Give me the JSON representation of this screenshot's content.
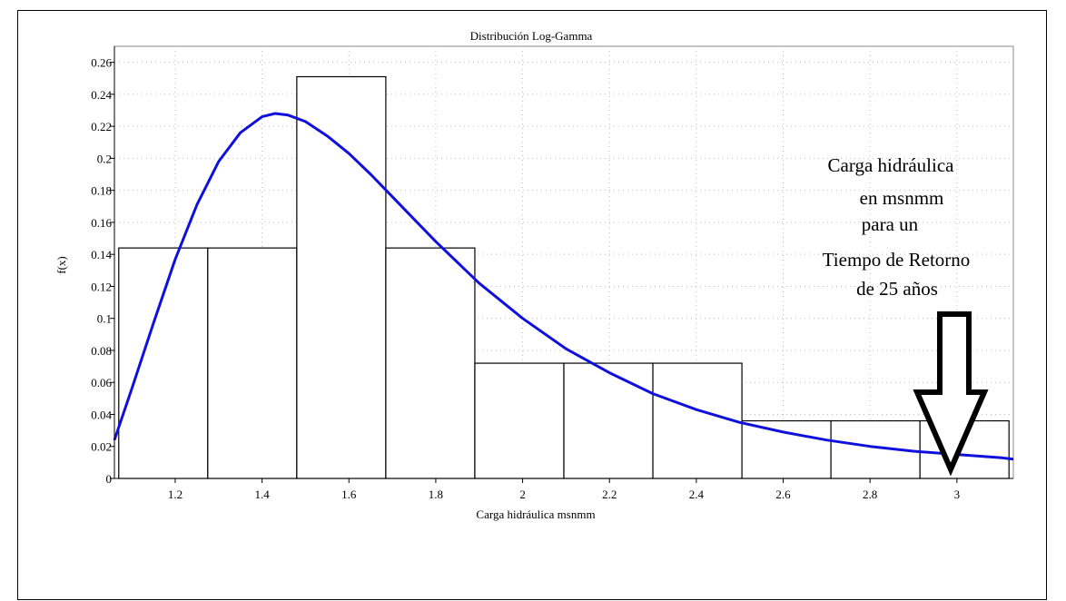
{
  "chart_data": {
    "type": "bar",
    "title": "Distribución Log-Gamma",
    "xlabel": "Carga hidráulica msnmm",
    "ylabel": "f(x)",
    "xlim": [
      1.06,
      3.13
    ],
    "ylim": [
      0,
      0.27
    ],
    "x_ticks": [
      1.2,
      1.4,
      1.6,
      1.8,
      2,
      2.2,
      2.4,
      2.6,
      2.8,
      3
    ],
    "x_tick_labels": [
      "1.2",
      "1.4",
      "1.6",
      "1.8",
      "2",
      "2.2",
      "2.4",
      "2.6",
      "2.8",
      "3"
    ],
    "y_ticks": [
      0,
      0.02,
      0.04,
      0.06,
      0.08,
      0.1,
      0.12,
      0.14,
      0.16,
      0.18,
      0.2,
      0.22,
      0.24,
      0.26
    ],
    "y_tick_labels": [
      "0",
      "0.02",
      "0.04",
      "0.06",
      "0.08",
      "0.1",
      "0.12",
      "0.14",
      "0.16",
      "0.18",
      "0.2",
      "0.22",
      "0.24",
      "0.26"
    ],
    "grid": true,
    "bins": [
      {
        "x0": 1.07,
        "x1": 1.275,
        "value": 0.144
      },
      {
        "x0": 1.275,
        "x1": 1.48,
        "value": 0.144
      },
      {
        "x0": 1.48,
        "x1": 1.685,
        "value": 0.251
      },
      {
        "x0": 1.685,
        "x1": 1.89,
        "value": 0.144
      },
      {
        "x0": 1.89,
        "x1": 2.095,
        "value": 0.072
      },
      {
        "x0": 2.095,
        "x1": 2.3,
        "value": 0.072
      },
      {
        "x0": 2.3,
        "x1": 2.505,
        "value": 0.072
      },
      {
        "x0": 2.505,
        "x1": 2.71,
        "value": 0.036
      },
      {
        "x0": 2.71,
        "x1": 2.915,
        "value": 0.036
      },
      {
        "x0": 2.915,
        "x1": 3.12,
        "value": 0.036
      }
    ],
    "curve": {
      "color": "#1010dd",
      "x": [
        1.06,
        1.1,
        1.15,
        1.2,
        1.25,
        1.3,
        1.35,
        1.4,
        1.43,
        1.46,
        1.5,
        1.55,
        1.6,
        1.65,
        1.7,
        1.75,
        1.8,
        1.85,
        1.9,
        2.0,
        2.1,
        2.2,
        2.3,
        2.4,
        2.5,
        2.6,
        2.7,
        2.8,
        2.9,
        3.0,
        3.1,
        3.13
      ],
      "y": [
        0.024,
        0.056,
        0.097,
        0.137,
        0.171,
        0.198,
        0.216,
        0.226,
        0.228,
        0.227,
        0.223,
        0.214,
        0.203,
        0.19,
        0.176,
        0.162,
        0.148,
        0.135,
        0.122,
        0.1,
        0.081,
        0.066,
        0.053,
        0.043,
        0.035,
        0.029,
        0.024,
        0.02,
        0.017,
        0.015,
        0.013,
        0.012
      ]
    },
    "annotation": {
      "lines": [
        "Carga hidráulica",
        "en msnmm",
        "para un",
        "Tiempo de Retorno",
        "de 25 años"
      ],
      "arrow_target_x": 3.0
    }
  }
}
